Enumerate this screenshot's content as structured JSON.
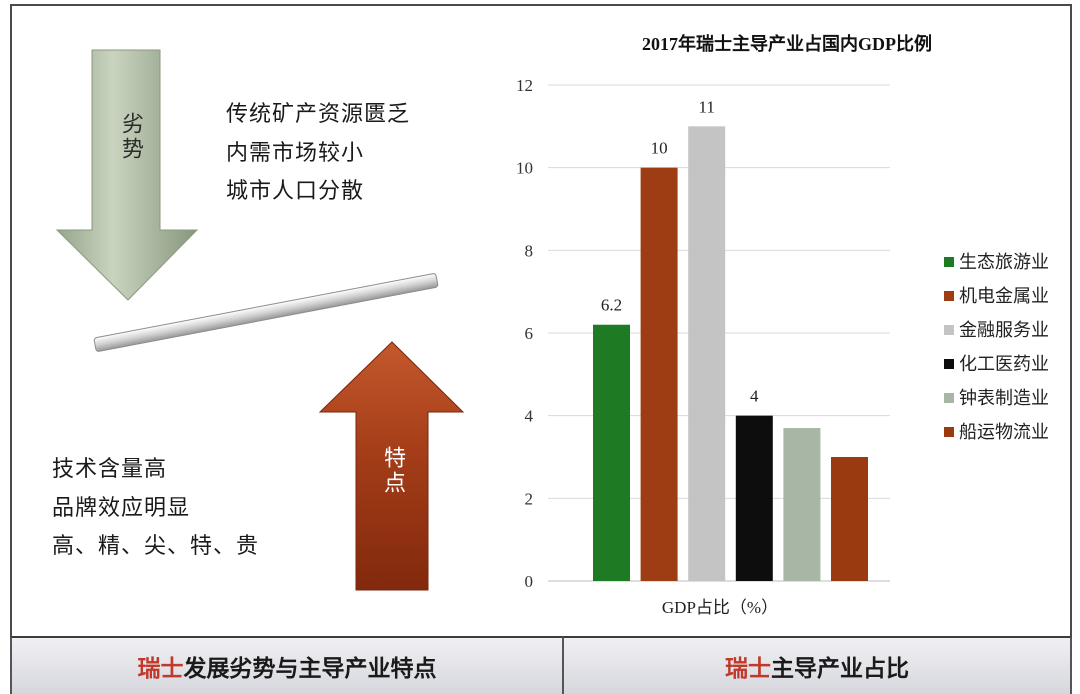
{
  "left_panel": {
    "weakness_label": "劣势",
    "weaknesses": [
      "传统矿产资源匮乏",
      "内需市场较小",
      "城市人口分散"
    ],
    "feature_label": "特点",
    "features": [
      "技术含量高",
      "品牌效应明显",
      "高、精、尖、特、贵"
    ]
  },
  "chart_data": {
    "type": "bar",
    "title": "2017年瑞士主导产业占国内GDP比例",
    "categories": [
      "生态旅游业",
      "机电金属业",
      "金融服务业",
      "化工医药业",
      "钟表制造业",
      "船运物流业"
    ],
    "values": [
      6.2,
      10,
      11,
      4,
      3.7,
      3
    ],
    "data_labels": [
      "6.2",
      "10",
      "11",
      "4",
      "",
      ""
    ],
    "colors": [
      "#1f7a24",
      "#9e3d14",
      "#c4c4c4",
      "#0d0d0d",
      "#a7b6a5",
      "#9a3a10"
    ],
    "xlabel": "GDP占比（%）",
    "ylabel": "",
    "ylim": [
      0,
      12
    ],
    "yticks": [
      0,
      2,
      4,
      6,
      8,
      10,
      12
    ],
    "grid": true,
    "legend": "right"
  },
  "footer": {
    "left": {
      "highlight": "瑞士",
      "rest": "发展劣势与主导产业特点"
    },
    "right": {
      "highlight": "瑞士",
      "rest": "主导产业占比"
    },
    "highlight_color": "#c0392b"
  }
}
